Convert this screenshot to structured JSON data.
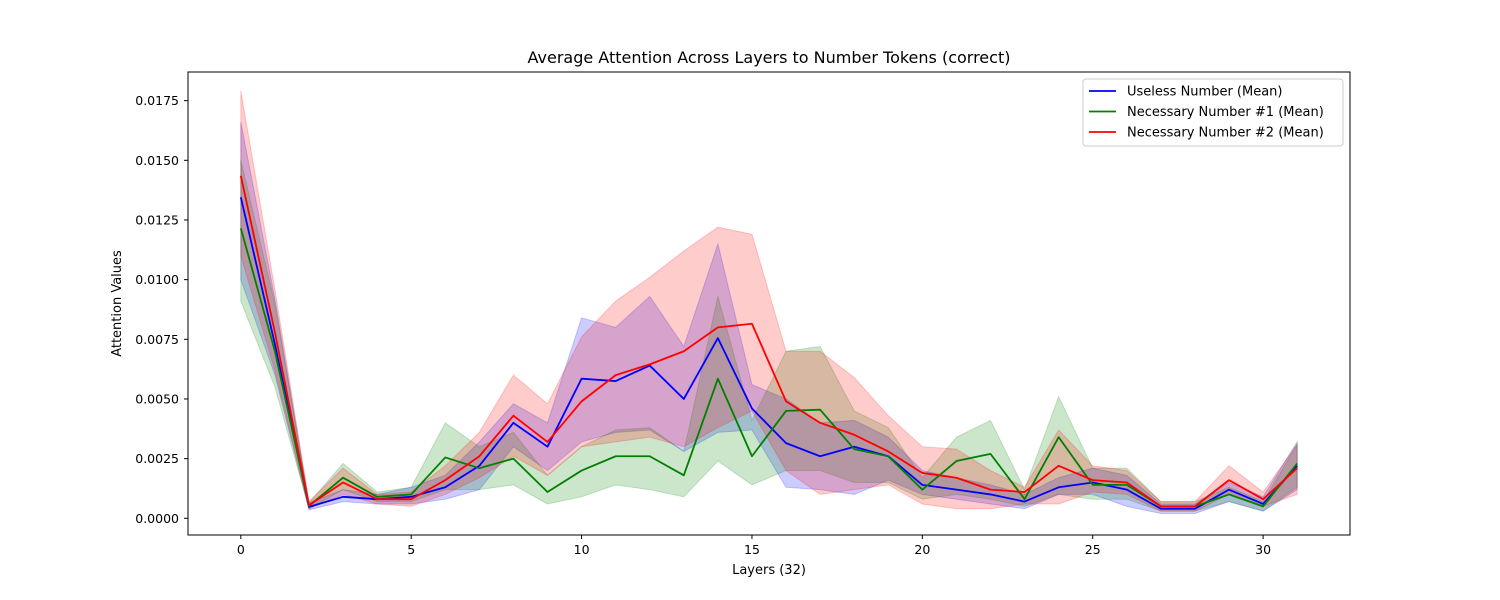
{
  "chart_data": {
    "type": "line",
    "title": "Average Attention Across Layers to Number Tokens (correct)",
    "xlabel": "Layers (32)",
    "ylabel": "Attention Values",
    "xlim": [
      -1.55,
      32.55
    ],
    "ylim": [
      -0.0007,
      0.0187
    ],
    "xticks": [
      0,
      5,
      10,
      15,
      20,
      25,
      30
    ],
    "xtick_labels": [
      "0",
      "5",
      "10",
      "15",
      "20",
      "25",
      "30"
    ],
    "yticks": [
      0.0,
      0.0025,
      0.005,
      0.0075,
      0.01,
      0.0125,
      0.015,
      0.0175
    ],
    "ytick_labels": [
      "0.0000",
      "0.0025",
      "0.0050",
      "0.0075",
      "0.0100",
      "0.0125",
      "0.0150",
      "0.0175"
    ],
    "grid": false,
    "legend_position": "top-right",
    "x": [
      0,
      1,
      2,
      3,
      4,
      5,
      6,
      7,
      8,
      9,
      10,
      11,
      12,
      13,
      14,
      15,
      16,
      17,
      18,
      19,
      20,
      21,
      22,
      23,
      24,
      25,
      26,
      27,
      28,
      29,
      30,
      31
    ],
    "series": [
      {
        "name": "Useless Number (Mean)",
        "color": "#0000ff",
        "values": [
          0.01345,
          0.0073,
          0.00048,
          0.0009,
          0.0008,
          0.0009,
          0.0013,
          0.0022,
          0.004,
          0.003,
          0.00585,
          0.00575,
          0.0064,
          0.005,
          0.00755,
          0.0046,
          0.00315,
          0.0026,
          0.003,
          0.0026,
          0.0014,
          0.0012,
          0.001,
          0.0007,
          0.0013,
          0.0015,
          0.0012,
          0.0004,
          0.0004,
          0.0012,
          0.0006,
          0.0022
        ],
        "lower": [
          0.01,
          0.006,
          0.00035,
          0.0007,
          0.0006,
          0.0006,
          0.0008,
          0.0012,
          0.003,
          0.002,
          0.0032,
          0.0036,
          0.0037,
          0.0028,
          0.0036,
          0.0037,
          0.0013,
          0.0012,
          0.001,
          0.0016,
          0.001,
          0.0008,
          0.0006,
          0.0004,
          0.001,
          0.001,
          0.0005,
          0.0002,
          0.0002,
          0.0007,
          0.0003,
          0.0012
        ],
        "upper": [
          0.0166,
          0.0092,
          0.00065,
          0.0012,
          0.001,
          0.0013,
          0.0018,
          0.0032,
          0.0048,
          0.004,
          0.0084,
          0.008,
          0.0093,
          0.0072,
          0.0115,
          0.0056,
          0.005,
          0.004,
          0.0041,
          0.0034,
          0.002,
          0.0017,
          0.0014,
          0.001,
          0.0017,
          0.0021,
          0.0018,
          0.0006,
          0.0006,
          0.0015,
          0.0009,
          0.0032
        ]
      },
      {
        "name": "Necessary Number #1 (Mean)",
        "color": "#008000",
        "values": [
          0.01215,
          0.007,
          0.00052,
          0.0017,
          0.0009,
          0.001,
          0.00255,
          0.0021,
          0.0025,
          0.0011,
          0.002,
          0.0026,
          0.0026,
          0.0018,
          0.00585,
          0.0026,
          0.0045,
          0.00455,
          0.0029,
          0.0026,
          0.0012,
          0.0024,
          0.0027,
          0.0008,
          0.0034,
          0.0014,
          0.0014,
          0.0005,
          0.0005,
          0.001,
          0.0005,
          0.0023
        ],
        "lower": [
          0.0091,
          0.0055,
          0.0004,
          0.0012,
          0.0007,
          0.0007,
          0.0012,
          0.0012,
          0.0014,
          0.0006,
          0.0009,
          0.0014,
          0.0012,
          0.0009,
          0.0024,
          0.0014,
          0.002,
          0.002,
          0.0015,
          0.0015,
          0.0008,
          0.001,
          0.0008,
          0.0005,
          0.001,
          0.0008,
          0.0008,
          0.0003,
          0.0003,
          0.0007,
          0.0003,
          0.0013
        ],
        "upper": [
          0.015,
          0.009,
          0.00065,
          0.0023,
          0.0011,
          0.0013,
          0.004,
          0.003,
          0.0036,
          0.0018,
          0.003,
          0.0037,
          0.0038,
          0.0028,
          0.0093,
          0.0041,
          0.007,
          0.0072,
          0.0045,
          0.0038,
          0.0017,
          0.0034,
          0.0041,
          0.0012,
          0.0051,
          0.0021,
          0.0021,
          0.0007,
          0.0007,
          0.0013,
          0.0007,
          0.0031
        ]
      },
      {
        "name": "Necessary Number #2 (Mean)",
        "color": "#ff0000",
        "values": [
          0.01435,
          0.0078,
          0.00055,
          0.0015,
          0.0008,
          0.0008,
          0.0016,
          0.0026,
          0.0043,
          0.0032,
          0.0049,
          0.006,
          0.00645,
          0.007,
          0.008,
          0.00815,
          0.0049,
          0.004,
          0.0035,
          0.0028,
          0.0019,
          0.0017,
          0.0012,
          0.0011,
          0.0022,
          0.0016,
          0.0015,
          0.0005,
          0.0005,
          0.0016,
          0.0008,
          0.0021
        ],
        "lower": [
          0.011,
          0.0062,
          0.0004,
          0.001,
          0.0006,
          0.0005,
          0.001,
          0.0017,
          0.0026,
          0.0018,
          0.003,
          0.0032,
          0.0034,
          0.003,
          0.0038,
          0.0045,
          0.002,
          0.001,
          0.0012,
          0.0014,
          0.0006,
          0.0004,
          0.0004,
          0.0006,
          0.0006,
          0.0011,
          0.001,
          0.0003,
          0.0003,
          0.001,
          0.0005,
          0.001
        ],
        "upper": [
          0.0179,
          0.0096,
          0.0007,
          0.0021,
          0.001,
          0.0011,
          0.0022,
          0.0036,
          0.006,
          0.0048,
          0.0076,
          0.0091,
          0.0101,
          0.0112,
          0.0122,
          0.0119,
          0.007,
          0.007,
          0.0059,
          0.0043,
          0.003,
          0.0029,
          0.002,
          0.0013,
          0.0037,
          0.0022,
          0.002,
          0.0007,
          0.0007,
          0.0022,
          0.0011,
          0.0031
        ]
      }
    ]
  }
}
